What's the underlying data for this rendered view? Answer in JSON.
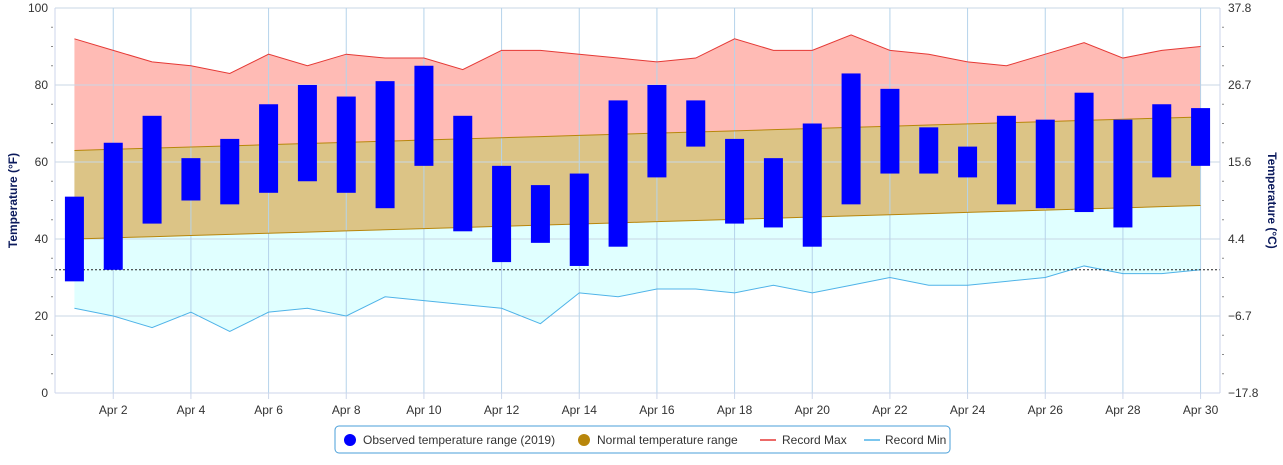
{
  "chart_data": {
    "type": "bar",
    "title": "",
    "xlabel": "",
    "ylabel": "Temperature (°F)",
    "y2label": "Temperature (°C)",
    "ylim": [
      0,
      100
    ],
    "y_ticks": [
      0,
      20,
      40,
      60,
      80,
      100
    ],
    "y2_ticks": [
      "−17.8",
      "−6.7",
      "4.4",
      "15.6",
      "26.7",
      "37.8"
    ],
    "x": [
      1,
      2,
      3,
      4,
      5,
      6,
      7,
      8,
      9,
      10,
      11,
      12,
      13,
      14,
      15,
      16,
      17,
      18,
      19,
      20,
      21,
      22,
      23,
      24,
      25,
      26,
      27,
      28,
      29,
      30
    ],
    "x_tick_labels": [
      {
        "day": 2,
        "label": "Apr 2"
      },
      {
        "day": 4,
        "label": "Apr 4"
      },
      {
        "day": 6,
        "label": "Apr 6"
      },
      {
        "day": 8,
        "label": "Apr 8"
      },
      {
        "day": 10,
        "label": "Apr 10"
      },
      {
        "day": 12,
        "label": "Apr 12"
      },
      {
        "day": 14,
        "label": "Apr 14"
      },
      {
        "day": 16,
        "label": "Apr 16"
      },
      {
        "day": 18,
        "label": "Apr 18"
      },
      {
        "day": 20,
        "label": "Apr 20"
      },
      {
        "day": 22,
        "label": "Apr 22"
      },
      {
        "day": 24,
        "label": "Apr 24"
      },
      {
        "day": 26,
        "label": "Apr 26"
      },
      {
        "day": 28,
        "label": "Apr 28"
      },
      {
        "day": 30,
        "label": "Apr 30"
      }
    ],
    "reference_line": 32,
    "grid": true,
    "legend_placement": "bottom-center",
    "series": [
      {
        "name": "Observed temperature range (2019)",
        "type": "columnrange",
        "color": "#0000ff",
        "low": [
          29,
          32,
          44,
          50,
          49,
          52,
          55,
          52,
          48,
          59,
          42,
          34,
          39,
          33,
          38,
          56,
          64,
          44,
          43,
          38,
          49,
          57,
          57,
          56,
          49,
          48,
          47,
          43,
          56,
          59
        ],
        "high": [
          51,
          65,
          72,
          61,
          66,
          75,
          80,
          77,
          81,
          85,
          72,
          59,
          54,
          57,
          76,
          80,
          76,
          66,
          61,
          70,
          83,
          79,
          69,
          64,
          72,
          71,
          78,
          71,
          75,
          74
        ]
      },
      {
        "name": "Normal temperature range",
        "type": "arearange",
        "color": "#b8860b",
        "fill": "#dcc486",
        "low": [
          40,
          40.3,
          40.6,
          40.9,
          41.2,
          41.5,
          41.8,
          42.1,
          42.4,
          42.7,
          43,
          43.3,
          43.6,
          43.9,
          44.2,
          44.5,
          44.8,
          45.1,
          45.4,
          45.7,
          46,
          46.3,
          46.6,
          46.9,
          47.2,
          47.5,
          47.8,
          48.1,
          48.4,
          48.7
        ],
        "high": [
          63,
          63.3,
          63.6,
          63.9,
          64.2,
          64.5,
          64.8,
          65.1,
          65.4,
          65.7,
          66,
          66.3,
          66.6,
          66.9,
          67.2,
          67.5,
          67.8,
          68.1,
          68.4,
          68.7,
          69,
          69.3,
          69.6,
          69.9,
          70.2,
          70.5,
          70.8,
          71.1,
          71.4,
          71.7
        ]
      },
      {
        "name": "Record Max",
        "type": "line",
        "color": "#e53935",
        "fill": "#ffbbb5",
        "values": [
          92,
          89,
          86,
          85,
          83,
          88,
          85,
          88,
          87,
          87,
          84,
          89,
          89,
          88,
          87,
          86,
          87,
          92,
          89,
          89,
          93,
          89,
          88,
          86,
          85,
          88,
          91,
          87,
          89,
          90
        ]
      },
      {
        "name": "Record Min",
        "type": "line",
        "color": "#4fb3e8",
        "fill": "#e0ffff",
        "values": [
          22,
          20,
          17,
          21,
          16,
          21,
          22,
          20,
          25,
          24,
          23,
          22,
          18,
          26,
          25,
          27,
          27,
          26,
          28,
          26,
          28,
          30,
          28,
          28,
          29,
          30,
          33,
          31,
          31,
          32
        ]
      }
    ]
  }
}
